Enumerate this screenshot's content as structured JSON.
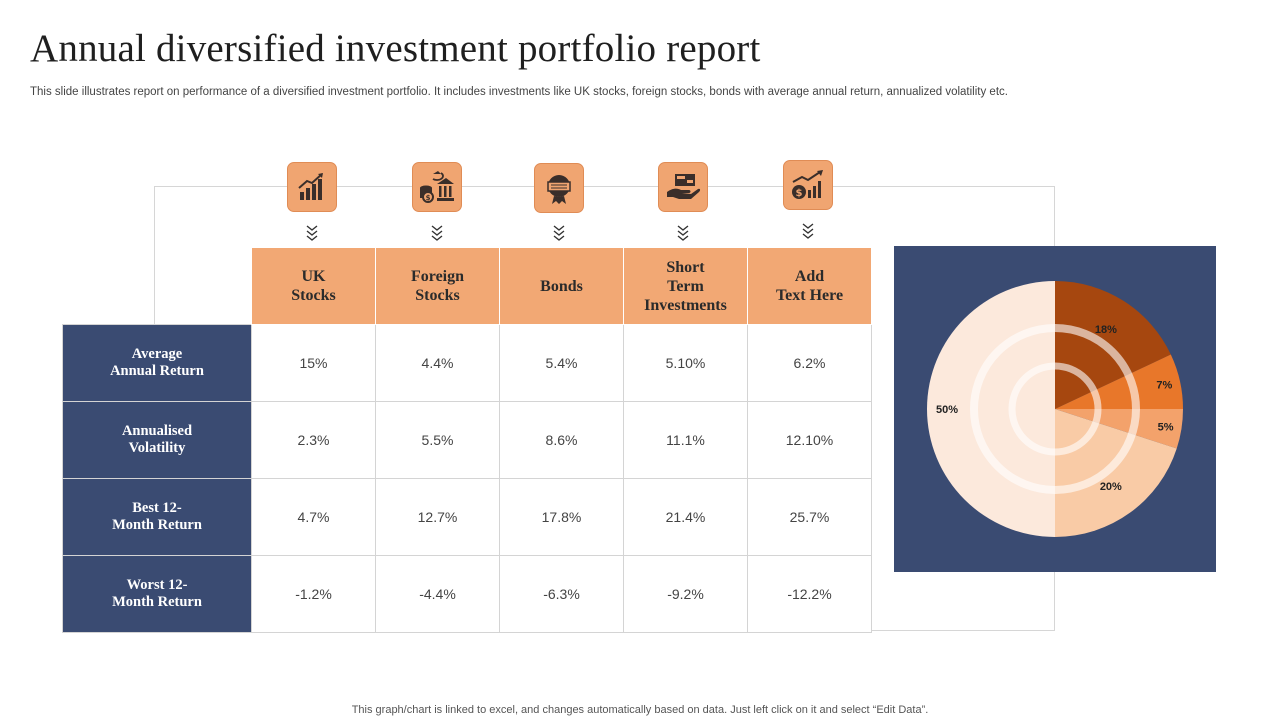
{
  "title": "Annual diversified investment portfolio report",
  "subtitle": "This slide illustrates report on performance of a diversified investment portfolio. It includes investments like UK stocks, foreign stocks, bonds with average annual return, annualized volatility etc.",
  "footer": "This graph/chart is linked to excel,  and changes automatically based on data. Just left click on it and select “Edit Data”.",
  "icons": [
    "bar-growth-icon",
    "coins-bank-icon",
    "bond-certificate-icon",
    "hand-cash-icon",
    "dollar-growth-icon"
  ],
  "colors": {
    "navy": "#3a4b72",
    "orange_header": "#f2a874",
    "dark_orange": "#a6470f",
    "orange": "#e8772a",
    "light_orange": "#f3a26b",
    "peach": "#f9cba6",
    "pale_peach": "#fce9dc"
  },
  "chart_data": [
    {
      "type": "table",
      "columns": [
        "UK\nStocks",
        "Foreign\nStocks",
        "Bonds",
        "Short\nTerm\nInvestments",
        "Add\nText Here"
      ],
      "rows": [
        {
          "label": "Average\nAnnual Return",
          "values": [
            "15%",
            "4.4%",
            "5.4%",
            "5.10%",
            "6.2%"
          ]
        },
        {
          "label": "Annualised\nVolatility",
          "values": [
            "2.3%",
            "5.5%",
            "8.6%",
            "11.1%",
            "12.10%"
          ]
        },
        {
          "label": "Best 12-\nMonth Return",
          "values": [
            "4.7%",
            "12.7%",
            "17.8%",
            "21.4%",
            "25.7%"
          ]
        },
        {
          "label": "Worst 12-\nMonth Return",
          "values": [
            "-1.2%",
            "-4.4%",
            "-6.3%",
            "-9.2%",
            "-12.2%"
          ]
        }
      ]
    },
    {
      "type": "pie",
      "title": "",
      "slices": [
        {
          "value": 18,
          "label": "18%",
          "color": "#a6470f"
        },
        {
          "value": 7,
          "label": "7%",
          "color": "#e8772a"
        },
        {
          "value": 5,
          "label": "5%",
          "color": "#f3a26b"
        },
        {
          "value": 20,
          "label": "20%",
          "color": "#f9cba6"
        },
        {
          "value": 50,
          "label": "50%",
          "color": "#fce9dc"
        }
      ]
    }
  ]
}
